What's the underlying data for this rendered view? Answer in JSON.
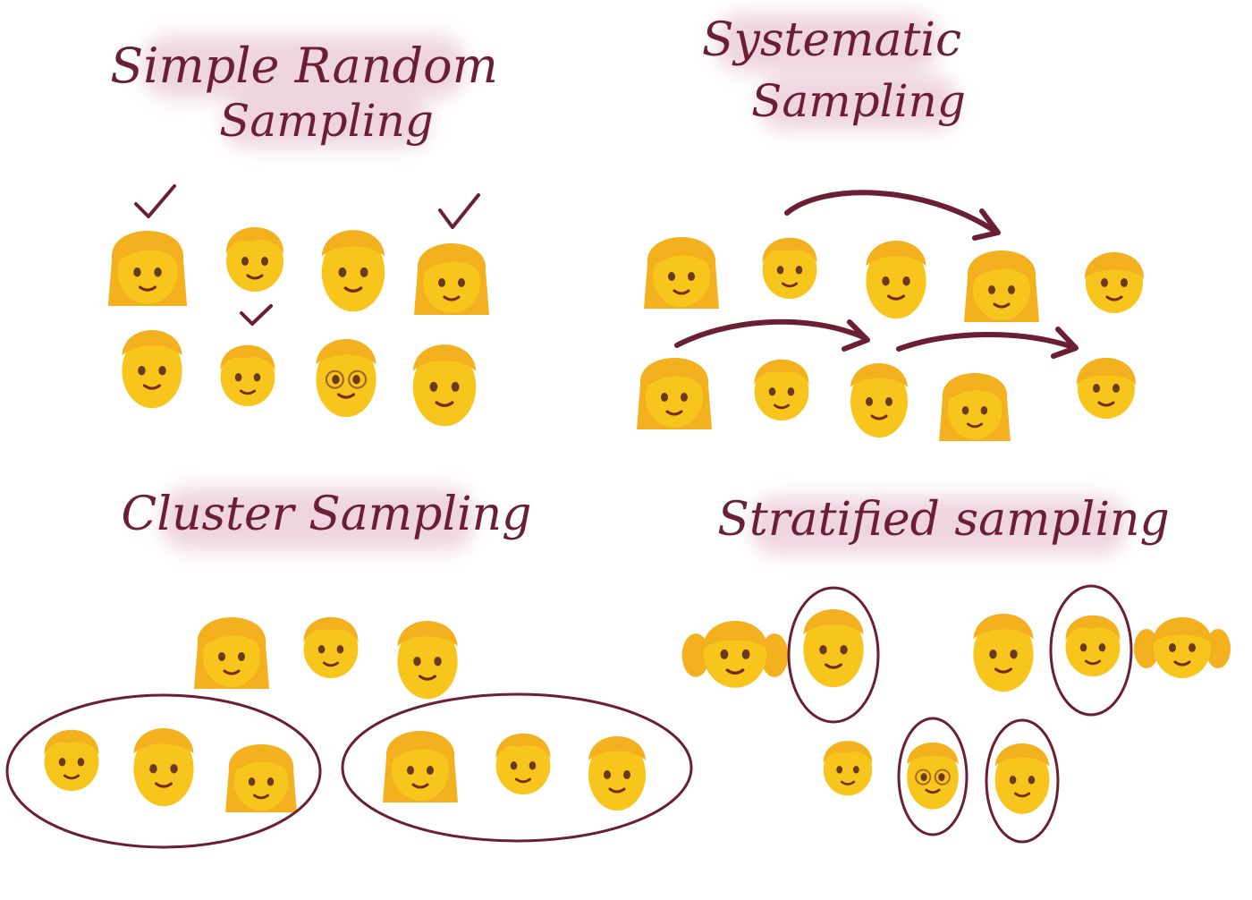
{
  "titles": {
    "simple_random": [
      "Simple Random",
      "Sampling"
    ],
    "systematic": [
      "Systematic",
      "Sampling"
    ],
    "cluster": [
      "Cluster Sampling"
    ],
    "stratified": [
      "Stratified sampling"
    ]
  },
  "colors": {
    "ink": "#6b1f34",
    "highlight": "#e9c7d6",
    "face": "#f8c51c",
    "hair": "#f3b01f",
    "hair_dark": "#d79110"
  },
  "panels": {
    "simple_random": {
      "people": [
        "woman",
        "boy",
        "man",
        "woman",
        "man",
        "child",
        "man-glasses",
        "man"
      ],
      "selected_marks": 3
    },
    "systematic": {
      "people": [
        "woman",
        "boy",
        "man",
        "woman",
        "girl",
        "woman",
        "boy",
        "man",
        "woman",
        "girl"
      ],
      "arrows": 3
    },
    "cluster": {
      "people": [
        "woman",
        "boy",
        "man",
        "boy",
        "man",
        "woman",
        "woman",
        "boy",
        "man"
      ],
      "clusters": 2
    },
    "stratified": {
      "people": [
        "girl-pigtails",
        "man",
        "man",
        "boy",
        "girl-pigtails",
        "boy",
        "man-glasses",
        "man"
      ],
      "circled": 4
    }
  }
}
